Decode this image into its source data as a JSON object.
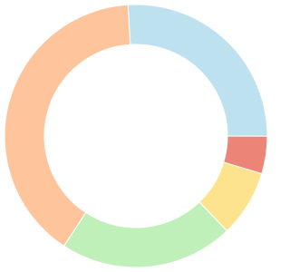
{
  "chart_data": {
    "type": "donut",
    "values": [
      26,
      4.6,
      8.2,
      21.4,
      39.8
    ],
    "colors": [
      "#bde1ef",
      "#ec8477",
      "#fde38e",
      "#bff0b9",
      "#fec59c"
    ]
  }
}
